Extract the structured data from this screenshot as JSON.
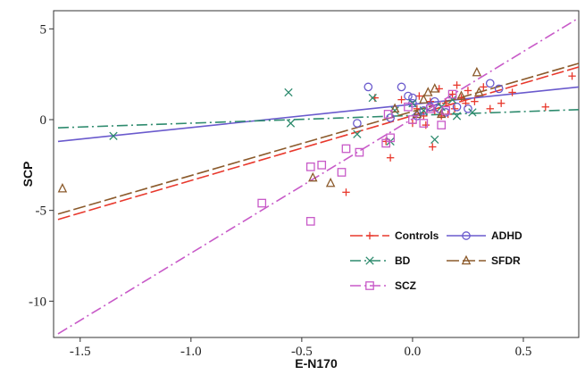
{
  "chart_data": {
    "type": "scatter",
    "xlabel": "E-N170",
    "ylabel": "SCP",
    "xlim": [
      -1.62,
      0.75
    ],
    "ylim": [
      -12.0,
      6.0
    ],
    "xticks": [
      -1.5,
      -1.0,
      -0.5,
      0.0,
      0.5
    ],
    "yticks": [
      5,
      0,
      -5,
      -10
    ],
    "xtick_labels": [
      "-1.5",
      "-1.0",
      "-0.5",
      "0.0",
      "0.5"
    ],
    "ytick_labels": [
      "5",
      "0",
      "-5",
      "-10"
    ],
    "grid": false,
    "legend_position": "bottom-right",
    "series": [
      {
        "name": "Controls",
        "color": "#e8382c",
        "marker": "plus",
        "dash": "long-dash",
        "fit": {
          "x": [
            -1.6,
            0.75
          ],
          "y": [
            -5.5,
            2.9
          ]
        },
        "points": [
          [
            -0.3,
            -4.0
          ],
          [
            -0.1,
            -2.1
          ],
          [
            -0.12,
            -1.2
          ],
          [
            0.0,
            -0.2
          ],
          [
            0.05,
            0.2
          ],
          [
            0.08,
            1.0
          ],
          [
            0.12,
            1.7
          ],
          [
            0.15,
            0.9
          ],
          [
            0.18,
            1.4
          ],
          [
            0.2,
            1.9
          ],
          [
            0.22,
            1.2
          ],
          [
            0.25,
            1.6
          ],
          [
            0.28,
            1.0
          ],
          [
            0.1,
            0.5
          ],
          [
            0.02,
            0.6
          ],
          [
            0.32,
            1.8
          ],
          [
            0.4,
            0.9
          ],
          [
            0.6,
            0.7
          ],
          [
            0.72,
            2.4
          ],
          [
            0.45,
            1.5
          ],
          [
            0.35,
            0.6
          ],
          [
            0.13,
            0.2
          ],
          [
            -0.05,
            1.1
          ],
          [
            0.06,
            -0.3
          ],
          [
            -0.17,
            1.2
          ],
          [
            0.09,
            -1.5
          ],
          [
            0.16,
            0.3
          ],
          [
            0.03,
            1.3
          ],
          [
            0.24,
            0.9
          ],
          [
            0.19,
            0.6
          ]
        ]
      },
      {
        "name": "ADHD",
        "color": "#6a5acd",
        "marker": "circle",
        "dash": "solid",
        "fit": {
          "x": [
            -1.6,
            0.75
          ],
          "y": [
            -1.2,
            1.8
          ]
        },
        "points": [
          [
            -0.2,
            1.8
          ],
          [
            -0.05,
            1.8
          ],
          [
            0.0,
            1.2
          ],
          [
            0.05,
            0.5
          ],
          [
            -0.1,
            0.1
          ],
          [
            0.1,
            1.0
          ],
          [
            0.15,
            0.4
          ],
          [
            0.2,
            0.7
          ],
          [
            0.35,
            2.0
          ],
          [
            0.39,
            1.7
          ],
          [
            0.02,
            0.2
          ],
          [
            -0.02,
            1.3
          ],
          [
            0.08,
            0.7
          ],
          [
            0.12,
            0.6
          ],
          [
            -0.25,
            -0.2
          ],
          [
            0.25,
            0.6
          ],
          [
            0.0,
            0.9
          ]
        ]
      },
      {
        "name": "BD",
        "color": "#2e8b6e",
        "marker": "x",
        "dash": "dash-dot",
        "fit": {
          "x": [
            -1.6,
            0.75
          ],
          "y": [
            -0.45,
            0.55
          ]
        },
        "points": [
          [
            -1.35,
            -0.9
          ],
          [
            -0.56,
            1.5
          ],
          [
            -0.55,
            -0.2
          ],
          [
            -0.25,
            -0.8
          ],
          [
            -0.18,
            1.2
          ],
          [
            -0.1,
            -1.2
          ],
          [
            0.1,
            -1.1
          ],
          [
            0.05,
            0.5
          ],
          [
            0.13,
            0.7
          ],
          [
            0.27,
            0.4
          ],
          [
            0.0,
            0.9
          ],
          [
            -0.08,
            0.5
          ],
          [
            0.18,
            1.1
          ],
          [
            0.2,
            0.2
          ]
        ]
      },
      {
        "name": "SFDR",
        "color": "#8b5a2b",
        "marker": "triangle",
        "dash": "long-dash",
        "fit": {
          "x": [
            -1.6,
            0.75
          ],
          "y": [
            -5.2,
            3.1
          ]
        },
        "points": [
          [
            -1.58,
            -3.8
          ],
          [
            -0.45,
            -3.2
          ],
          [
            -0.37,
            -3.5
          ],
          [
            -0.08,
            0.6
          ],
          [
            0.07,
            1.5
          ],
          [
            0.1,
            1.7
          ],
          [
            0.13,
            0.3
          ],
          [
            0.22,
            1.3
          ],
          [
            0.29,
            2.6
          ],
          [
            0.3,
            1.5
          ],
          [
            0.02,
            0.3
          ],
          [
            0.05,
            1.1
          ]
        ]
      },
      {
        "name": "SCZ",
        "color": "#c85ac8",
        "marker": "square",
        "dash": "dash-dot",
        "fit": {
          "x": [
            -1.6,
            0.75
          ],
          "y": [
            -11.8,
            5.6
          ]
        },
        "points": [
          [
            -0.68,
            -4.6
          ],
          [
            -0.46,
            -5.6
          ],
          [
            -0.46,
            -2.6
          ],
          [
            -0.41,
            -2.5
          ],
          [
            -0.3,
            -1.6
          ],
          [
            -0.32,
            -2.9
          ],
          [
            -0.24,
            -1.8
          ],
          [
            -0.12,
            -1.3
          ],
          [
            -0.1,
            -1.0
          ],
          [
            -0.11,
            0.3
          ],
          [
            -0.02,
            0.7
          ],
          [
            0.05,
            -0.2
          ],
          [
            0.13,
            -0.3
          ],
          [
            0.15,
            0.5
          ],
          [
            0.18,
            1.4
          ],
          [
            0.08,
            0.6
          ],
          [
            0.0,
            0.0
          ]
        ]
      }
    ],
    "legend": [
      {
        "label": "Controls",
        "series": 0
      },
      {
        "label": "ADHD",
        "series": 1
      },
      {
        "label": "BD",
        "series": 2
      },
      {
        "label": "SFDR",
        "series": 3
      },
      {
        "label": "SCZ",
        "series": 4
      }
    ]
  }
}
